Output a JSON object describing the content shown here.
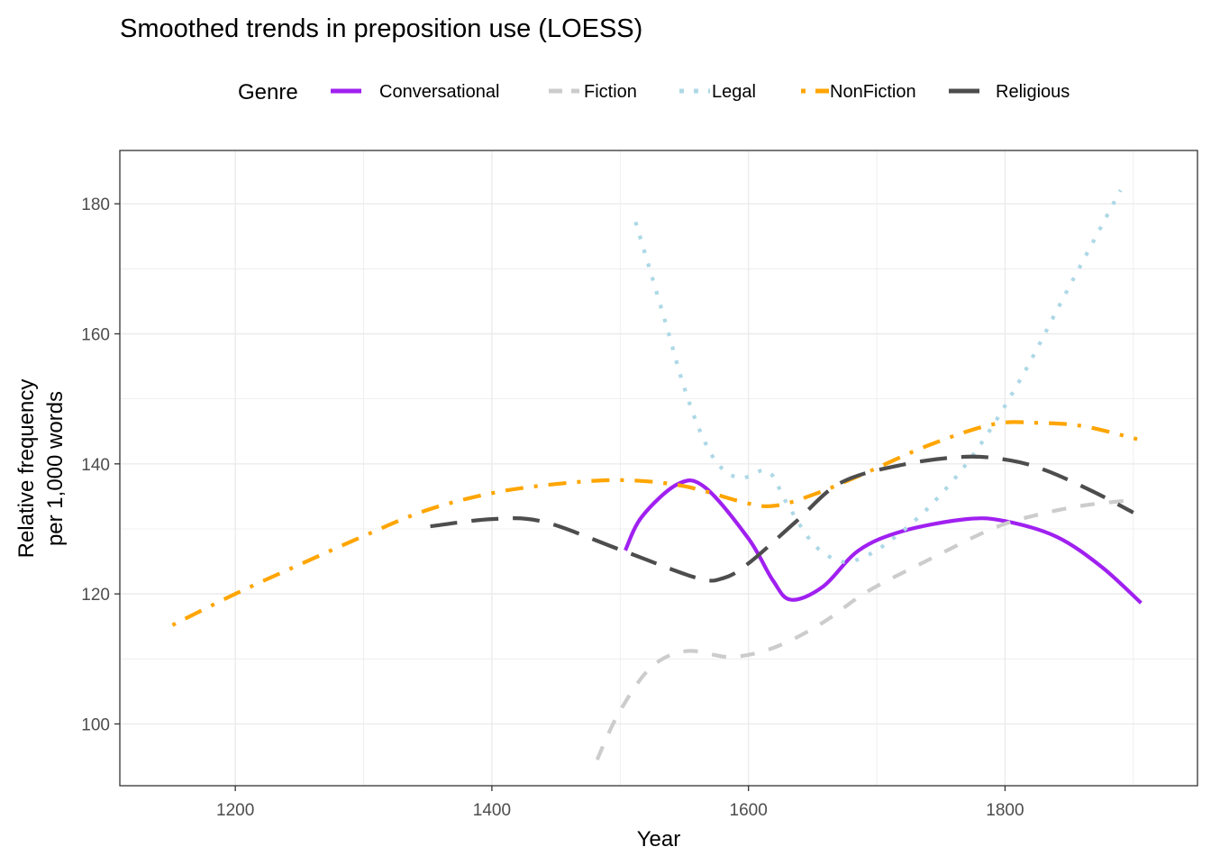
{
  "chart_data": {
    "type": "line",
    "title": "Smoothed trends in preposition use (LOESS)",
    "xlabel": "Year",
    "ylabel": [
      "Relative frequency",
      "per 1,000 words"
    ],
    "xlim": [
      1110,
      1950
    ],
    "ylim": [
      90.5,
      188.2
    ],
    "xticks": [
      1200,
      1400,
      1600,
      1800
    ],
    "yticks": [
      100,
      120,
      140,
      160,
      180
    ],
    "grid": true,
    "legend": {
      "title": "Genre",
      "position": "top"
    },
    "series": [
      {
        "name": "Conversational",
        "color": "#a020f0",
        "dash": "solid",
        "points": [
          [
            1504,
            126.7
          ],
          [
            1517,
            131.9
          ],
          [
            1545,
            136.9
          ],
          [
            1566,
            136.4
          ],
          [
            1600,
            128.5
          ],
          [
            1619,
            122.1
          ],
          [
            1633,
            119.1
          ],
          [
            1658,
            121.1
          ],
          [
            1686,
            126.7
          ],
          [
            1721,
            129.7
          ],
          [
            1770,
            131.5
          ],
          [
            1800,
            131.2
          ],
          [
            1840,
            128.8
          ],
          [
            1875,
            124.2
          ],
          [
            1906,
            118.6
          ]
        ]
      },
      {
        "name": "Fiction",
        "color": "#cccccc",
        "dash": "dashed",
        "points": [
          [
            1482,
            94.5
          ],
          [
            1499,
            101.7
          ],
          [
            1524,
            108.7
          ],
          [
            1552,
            111.2
          ],
          [
            1587,
            110.3
          ],
          [
            1622,
            111.9
          ],
          [
            1658,
            115.6
          ],
          [
            1693,
            120.4
          ],
          [
            1741,
            125.3
          ],
          [
            1791,
            130.1
          ],
          [
            1826,
            132.2
          ],
          [
            1861,
            133.6
          ],
          [
            1893,
            134.3
          ]
        ]
      },
      {
        "name": "Legal",
        "color": "#add8e6",
        "dash": "dotted",
        "points": [
          [
            1512,
            177.2
          ],
          [
            1524,
            169.3
          ],
          [
            1537,
            160.6
          ],
          [
            1549,
            152.3
          ],
          [
            1563,
            144.7
          ],
          [
            1577,
            139.8
          ],
          [
            1594,
            137.8
          ],
          [
            1615,
            138.9
          ],
          [
            1630,
            133.9
          ],
          [
            1651,
            127.6
          ],
          [
            1672,
            125.0
          ],
          [
            1689,
            125.6
          ],
          [
            1710,
            128.1
          ],
          [
            1742,
            133.6
          ],
          [
            1777,
            141.9
          ],
          [
            1812,
            153.0
          ],
          [
            1847,
            166.1
          ],
          [
            1890,
            182.1
          ]
        ]
      },
      {
        "name": "NonFiction",
        "color": "#ffa500",
        "dash": "dotdash",
        "points": [
          [
            1151,
            115.2
          ],
          [
            1200,
            120.0
          ],
          [
            1250,
            124.5
          ],
          [
            1299,
            128.8
          ],
          [
            1348,
            132.8
          ],
          [
            1400,
            135.5
          ],
          [
            1450,
            136.9
          ],
          [
            1500,
            137.5
          ],
          [
            1549,
            136.6
          ],
          [
            1600,
            133.9
          ],
          [
            1622,
            133.6
          ],
          [
            1651,
            135.3
          ],
          [
            1689,
            138.4
          ],
          [
            1741,
            142.9
          ],
          [
            1791,
            146.1
          ],
          [
            1826,
            146.3
          ],
          [
            1861,
            145.8
          ],
          [
            1903,
            143.8
          ]
        ]
      },
      {
        "name": "Religious",
        "color": "#4d4d4d",
        "dash": "longdash",
        "points": [
          [
            1352,
            130.4
          ],
          [
            1400,
            131.5
          ],
          [
            1440,
            131.1
          ],
          [
            1500,
            126.8
          ],
          [
            1559,
            122.5
          ],
          [
            1580,
            122.4
          ],
          [
            1600,
            124.7
          ],
          [
            1637,
            131.1
          ],
          [
            1672,
            137.1
          ],
          [
            1721,
            139.9
          ],
          [
            1770,
            141.1
          ],
          [
            1805,
            140.5
          ],
          [
            1833,
            138.9
          ],
          [
            1869,
            135.7
          ],
          [
            1900,
            132.5
          ]
        ]
      }
    ]
  }
}
